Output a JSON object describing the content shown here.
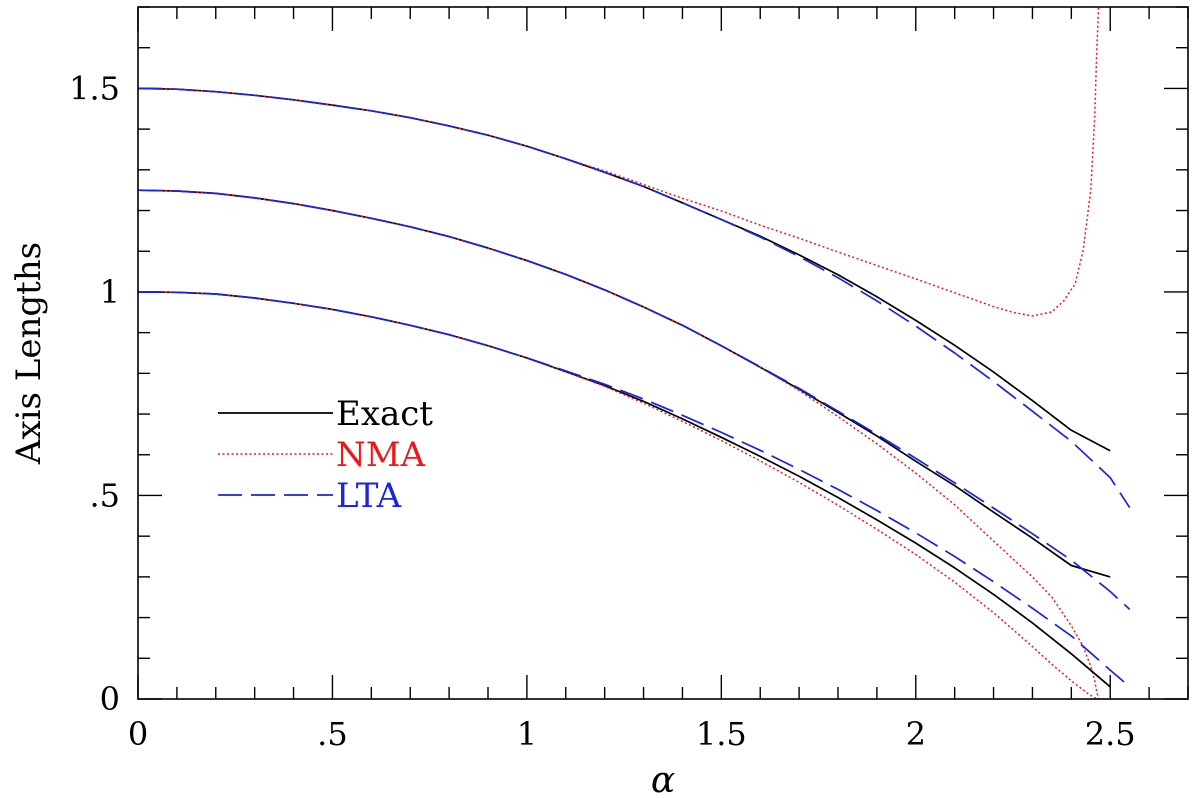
{
  "chart_data": {
    "type": "line",
    "title": "",
    "xlabel": "α",
    "ylabel": "Axis Lengths",
    "xlim": [
      0,
      2.7
    ],
    "ylim": [
      0,
      1.7
    ],
    "x_ticks": [
      {
        "value": 0,
        "label": "0"
      },
      {
        "value": 0.5,
        "label": ".5"
      },
      {
        "value": 1,
        "label": "1"
      },
      {
        "value": 1.5,
        "label": "1.5"
      },
      {
        "value": 2,
        "label": "2"
      },
      {
        "value": 2.5,
        "label": "2.5"
      }
    ],
    "y_ticks": [
      {
        "value": 0,
        "label": "0"
      },
      {
        "value": 0.5,
        "label": ".5"
      },
      {
        "value": 1,
        "label": "1"
      },
      {
        "value": 1.5,
        "label": "1.5"
      }
    ],
    "x_minor_step": 0.1,
    "y_minor_step": 0.1,
    "grid": false,
    "legend_position": "left",
    "series": [
      {
        "name": "Exact",
        "style": "solid",
        "color": "#000000",
        "legend": true,
        "x": [
          0,
          0.1,
          0.2,
          0.3,
          0.4,
          0.5,
          0.6,
          0.7,
          0.8,
          0.9,
          1.0,
          1.1,
          1.2,
          1.3,
          1.4,
          1.5,
          1.6,
          1.7,
          1.8,
          1.9,
          2.0,
          2.1,
          2.2,
          2.3,
          2.4,
          2.5
        ],
        "values": [
          1.5,
          1.498,
          1.492,
          1.483,
          1.472,
          1.459,
          1.445,
          1.428,
          1.408,
          1.385,
          1.358,
          1.327,
          1.294,
          1.259,
          1.219,
          1.178,
          1.137,
          1.091,
          1.042,
          0.988,
          0.93,
          0.869,
          0.803,
          0.733,
          0.66,
          0.61
        ]
      },
      {
        "name": "NMA",
        "style": "dotted",
        "color": "#e8191c",
        "legend": true,
        "x": [
          0,
          0.1,
          0.2,
          0.3,
          0.4,
          0.5,
          0.6,
          0.7,
          0.8,
          0.9,
          1.0,
          1.1,
          1.2,
          1.3,
          1.4,
          1.5,
          1.6,
          1.7,
          1.8,
          1.9,
          2.0,
          2.1,
          2.2,
          2.25,
          2.3,
          2.35,
          2.38,
          2.41,
          2.43,
          2.45,
          2.46,
          2.465,
          2.47
        ],
        "values": [
          1.5,
          1.498,
          1.492,
          1.483,
          1.472,
          1.459,
          1.445,
          1.428,
          1.408,
          1.385,
          1.358,
          1.327,
          1.297,
          1.264,
          1.23,
          1.199,
          1.164,
          1.132,
          1.098,
          1.065,
          1.032,
          0.998,
          0.964,
          0.95,
          0.941,
          0.951,
          0.978,
          1.02,
          1.1,
          1.25,
          1.43,
          1.58,
          1.7
        ]
      },
      {
        "name": "LTA",
        "style": "dashed",
        "color": "#1a24d8",
        "legend": true,
        "x": [
          0,
          0.1,
          0.2,
          0.3,
          0.4,
          0.5,
          0.6,
          0.7,
          0.8,
          0.9,
          1.0,
          1.1,
          1.2,
          1.3,
          1.4,
          1.5,
          1.6,
          1.7,
          1.8,
          1.9,
          2.0,
          2.1,
          2.2,
          2.3,
          2.4,
          2.5,
          2.55
        ],
        "values": [
          1.5,
          1.498,
          1.492,
          1.483,
          1.472,
          1.459,
          1.445,
          1.428,
          1.408,
          1.385,
          1.358,
          1.327,
          1.294,
          1.259,
          1.219,
          1.178,
          1.135,
          1.087,
          1.035,
          0.978,
          0.916,
          0.85,
          0.78,
          0.707,
          0.633,
          0.544,
          0.47
        ]
      },
      {
        "name": "Exact",
        "style": "solid",
        "color": "#000000",
        "legend": false,
        "x": [
          0,
          0.1,
          0.2,
          0.3,
          0.4,
          0.5,
          0.6,
          0.7,
          0.8,
          0.9,
          1.0,
          1.1,
          1.2,
          1.3,
          1.4,
          1.5,
          1.6,
          1.7,
          1.8,
          1.9,
          2.0,
          2.1,
          2.2,
          2.3,
          2.4,
          2.5
        ],
        "values": [
          1.25,
          1.248,
          1.242,
          1.231,
          1.217,
          1.2,
          1.181,
          1.16,
          1.136,
          1.108,
          1.077,
          1.043,
          1.005,
          0.963,
          0.918,
          0.868,
          0.815,
          0.761,
          0.704,
          0.646,
          0.584,
          0.524,
          0.459,
          0.395,
          0.328,
          0.3
        ]
      },
      {
        "name": "NMA",
        "style": "dotted",
        "color": "#e8191c",
        "legend": false,
        "x": [
          0,
          0.1,
          0.2,
          0.3,
          0.4,
          0.5,
          0.6,
          0.7,
          0.8,
          0.9,
          1.0,
          1.1,
          1.2,
          1.3,
          1.4,
          1.5,
          1.6,
          1.7,
          1.8,
          1.9,
          2.0,
          2.1,
          2.2,
          2.3,
          2.35,
          2.4,
          2.43,
          2.45,
          2.46,
          2.465,
          2.47
        ],
        "values": [
          1.25,
          1.248,
          1.242,
          1.231,
          1.217,
          1.2,
          1.181,
          1.16,
          1.136,
          1.108,
          1.077,
          1.043,
          1.005,
          0.963,
          0.918,
          0.868,
          0.815,
          0.758,
          0.694,
          0.627,
          0.555,
          0.477,
          0.388,
          0.3,
          0.25,
          0.18,
          0.13,
          0.08,
          0.045,
          0.02,
          0.0
        ]
      },
      {
        "name": "LTA",
        "style": "dashed",
        "color": "#1a24d8",
        "legend": false,
        "x": [
          0,
          0.1,
          0.2,
          0.3,
          0.4,
          0.5,
          0.6,
          0.7,
          0.8,
          0.9,
          1.0,
          1.1,
          1.2,
          1.3,
          1.4,
          1.5,
          1.6,
          1.7,
          1.8,
          1.9,
          2.0,
          2.1,
          2.2,
          2.3,
          2.4,
          2.5,
          2.55
        ],
        "values": [
          1.25,
          1.248,
          1.242,
          1.231,
          1.217,
          1.2,
          1.181,
          1.16,
          1.136,
          1.108,
          1.077,
          1.043,
          1.005,
          0.963,
          0.918,
          0.868,
          0.816,
          0.763,
          0.707,
          0.65,
          0.591,
          0.531,
          0.469,
          0.406,
          0.341,
          0.264,
          0.22
        ]
      },
      {
        "name": "Exact",
        "style": "solid",
        "color": "#000000",
        "legend": false,
        "x": [
          0,
          0.1,
          0.2,
          0.3,
          0.4,
          0.5,
          0.6,
          0.7,
          0.8,
          0.9,
          1.0,
          1.1,
          1.2,
          1.3,
          1.4,
          1.5,
          1.6,
          1.7,
          1.8,
          1.9,
          2.0,
          2.1,
          2.2,
          2.3,
          2.4,
          2.5
        ],
        "values": [
          1.0,
          0.999,
          0.995,
          0.985,
          0.972,
          0.957,
          0.939,
          0.918,
          0.895,
          0.868,
          0.838,
          0.804,
          0.77,
          0.731,
          0.688,
          0.643,
          0.596,
          0.547,
          0.495,
          0.44,
          0.383,
          0.322,
          0.257,
          0.187,
          0.111,
          0.03
        ]
      },
      {
        "name": "NMA",
        "style": "dotted",
        "color": "#e8191c",
        "legend": false,
        "x": [
          0,
          0.1,
          0.2,
          0.3,
          0.4,
          0.5,
          0.6,
          0.7,
          0.8,
          0.9,
          1.0,
          1.1,
          1.2,
          1.3,
          1.4,
          1.5,
          1.6,
          1.7,
          1.8,
          1.9,
          2.0,
          2.1,
          2.2,
          2.3,
          2.35,
          2.4,
          2.44,
          2.46,
          2.47
        ],
        "values": [
          1.0,
          0.999,
          0.995,
          0.985,
          0.972,
          0.957,
          0.939,
          0.918,
          0.895,
          0.868,
          0.838,
          0.804,
          0.768,
          0.727,
          0.682,
          0.635,
          0.585,
          0.532,
          0.476,
          0.417,
          0.355,
          0.287,
          0.212,
          0.129,
          0.085,
          0.045,
          0.015,
          0.003,
          0.0
        ]
      },
      {
        "name": "LTA",
        "style": "dashed",
        "color": "#1a24d8",
        "legend": false,
        "x": [
          0,
          0.1,
          0.2,
          0.3,
          0.4,
          0.5,
          0.6,
          0.7,
          0.8,
          0.9,
          1.0,
          1.1,
          1.2,
          1.3,
          1.4,
          1.5,
          1.6,
          1.7,
          1.8,
          1.9,
          2.0,
          2.1,
          2.2,
          2.3,
          2.4,
          2.5,
          2.55
        ],
        "values": [
          1.0,
          0.999,
          0.995,
          0.985,
          0.972,
          0.957,
          0.939,
          0.918,
          0.895,
          0.868,
          0.838,
          0.806,
          0.773,
          0.737,
          0.697,
          0.655,
          0.611,
          0.564,
          0.515,
          0.463,
          0.408,
          0.35,
          0.288,
          0.223,
          0.155,
          0.071,
          0.03
        ]
      }
    ]
  }
}
